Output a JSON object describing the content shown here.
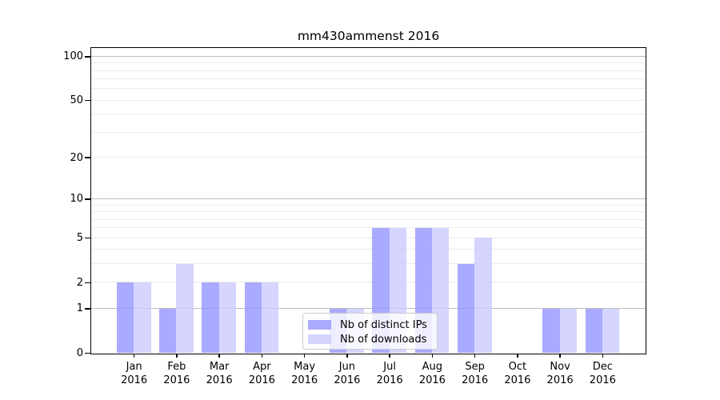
{
  "title": "mm430ammenst 2016",
  "chart_data": {
    "type": "bar",
    "title": "mm430ammenst 2016",
    "categories": [
      "Jan",
      "Feb",
      "Mar",
      "Apr",
      "May",
      "Jun",
      "Jul",
      "Aug",
      "Sep",
      "Oct",
      "Nov",
      "Dec"
    ],
    "category_year_label": "2016",
    "series": [
      {
        "name": "Nb of distinct IPs",
        "color": "#9999ff",
        "fill_alpha": 0.83,
        "values": [
          2,
          1,
          2,
          2,
          0,
          1,
          6,
          6,
          3,
          0,
          1,
          1
        ]
      },
      {
        "name": "Nb of downloads",
        "color": "#ccccff",
        "fill_alpha": 0.83,
        "values": [
          2,
          3,
          2,
          2,
          0,
          1,
          6,
          6,
          5,
          0,
          1,
          1
        ]
      }
    ],
    "xlabel": "",
    "ylabel": "",
    "yscale": "log1p",
    "ylim": [
      0,
      114
    ],
    "yticks": [
      0,
      1,
      2,
      5,
      10,
      20,
      50,
      100
    ],
    "grid": {
      "on": true,
      "major_lines": [
        1,
        10,
        100
      ],
      "minor_lines": [
        2,
        3,
        4,
        5,
        6,
        7,
        8,
        9,
        20,
        30,
        40,
        50,
        60,
        70,
        80,
        90
      ],
      "major_color": "#bdbdbd",
      "minor_color": "#ebebeb"
    },
    "legend_position": "lower center-left, inside plot"
  }
}
